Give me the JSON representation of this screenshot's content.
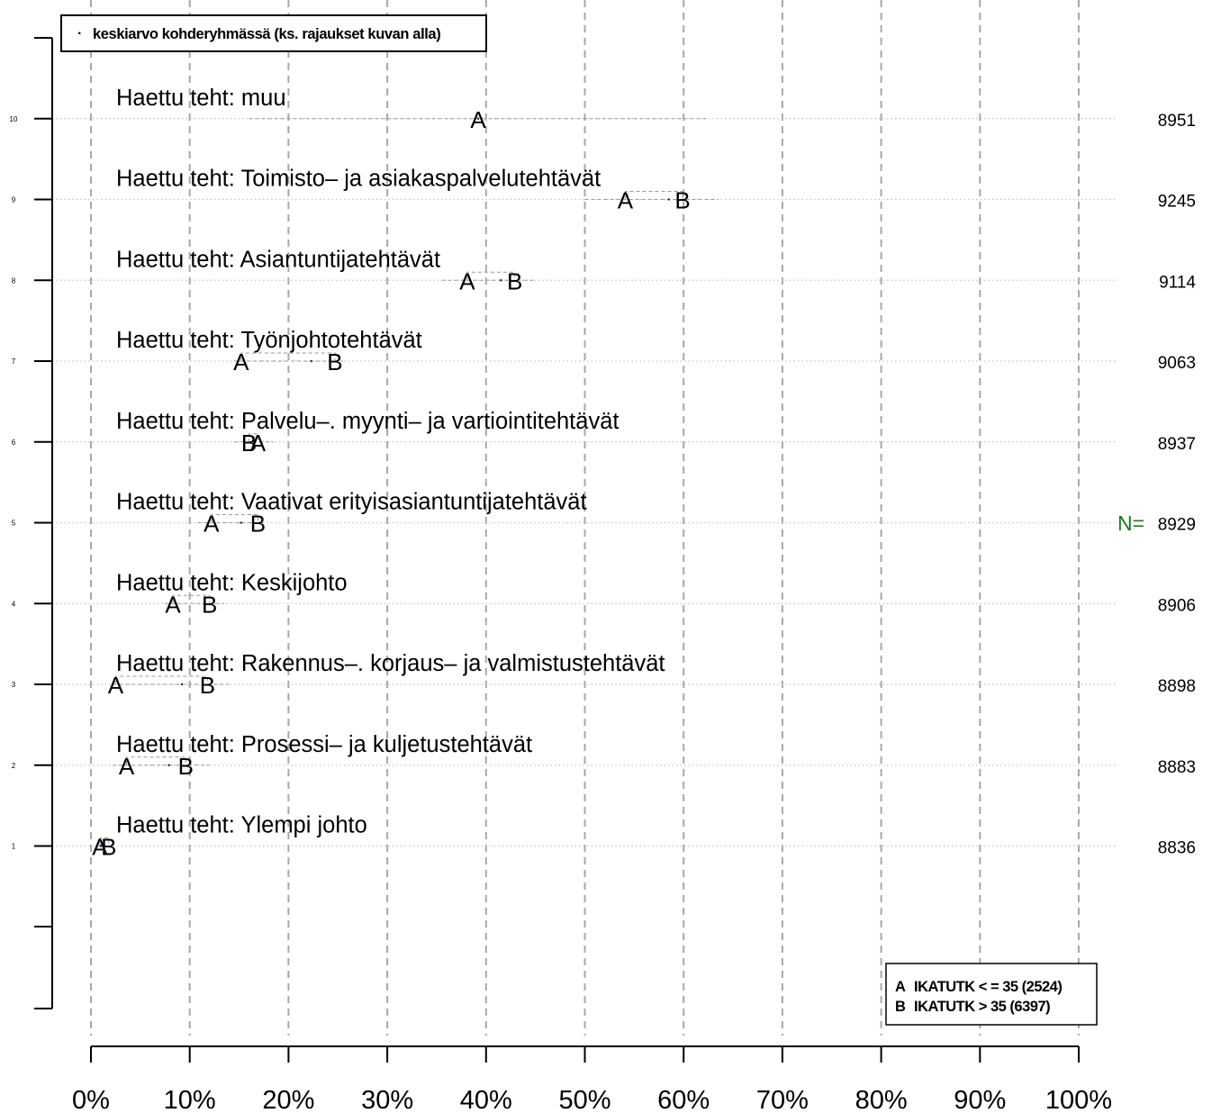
{
  "chart_data": {
    "type": "scatter",
    "xlim": [
      0,
      100
    ],
    "x_ticks": [
      "0%",
      "10%",
      "20%",
      "30%",
      "40%",
      "50%",
      "60%",
      "70%",
      "80%",
      "90%",
      "100%"
    ],
    "n_label": "N=",
    "legend_top": {
      "symbol": "·",
      "text": "keskiarvo kohderyhmässä (ks. rajaukset kuvan alla)",
      "placement": "top-left"
    },
    "legend_groups": {
      "placement": "bottom-right",
      "items": [
        {
          "letter": "A",
          "text": "IKATUTK < = 35 (2524)"
        },
        {
          "letter": "B",
          "text": "IKATUTK > 35 (6397)"
        }
      ]
    },
    "rows": [
      {
        "index": "1",
        "label": "Haettu teht: Ylempi johto",
        "n": "8836",
        "range": [
          0.6,
          2.2
        ],
        "mean": 1.0,
        "A": 0.9,
        "B": 1.8
      },
      {
        "index": "2",
        "label": "Haettu teht: Prosessi– ja kuljetustehtävät",
        "n": "8883",
        "range": [
          2.2,
          12.0
        ],
        "mean": 7.9,
        "A": 3.6,
        "B": 9.6
      },
      {
        "index": "3",
        "label": "Haettu teht: Rakennus–. korjaus– ja valmistustehtävät",
        "n": "8898",
        "range": [
          2.2,
          14.0
        ],
        "mean": 9.2,
        "A": 2.5,
        "B": 11.8
      },
      {
        "index": "4",
        "label": "Haettu teht: Keskijohto",
        "n": "8906",
        "range": [
          7.5,
          13.5
        ],
        "mean": 11.5,
        "A": 8.3,
        "B": 12.0
      },
      {
        "index": "5",
        "label": "Haettu teht: Vaativat erityisasiantuntijatehtävät",
        "n": "8929",
        "range": [
          10.8,
          17.5
        ],
        "mean": 15.2,
        "A": 12.2,
        "B": 16.9
      },
      {
        "index": "6",
        "label": "Haettu teht: Palvelu–. myynti– ja vartiointitehtävät",
        "n": "8937",
        "range": [
          14.5,
          18.5
        ],
        "mean": 16.5,
        "A": 16.9,
        "B": 16.0
      },
      {
        "index": "7",
        "label": "Haettu teht: Työnjohtotehtävät",
        "n": "9063",
        "range": [
          14.5,
          25.5
        ],
        "mean": 22.3,
        "A": 15.2,
        "B": 24.7
      },
      {
        "index": "8",
        "label": "Haettu teht: Asiantuntijatehtävät",
        "n": "9114",
        "range": [
          35.5,
          45.0
        ],
        "mean": 41.5,
        "A": 38.1,
        "B": 42.9
      },
      {
        "index": "9",
        "label": "Haettu teht: Toimisto– ja asiakaspalvelutehtävät",
        "n": "9245",
        "range": [
          50.0,
          63.5
        ],
        "mean": 58.5,
        "A": 54.1,
        "B": 59.9
      },
      {
        "index": "10",
        "label": "Haettu teht:  muu",
        "n": "8951",
        "range": [
          16.0,
          62.5
        ],
        "mean": 39.2,
        "A": 39.2,
        "B": null
      }
    ]
  }
}
